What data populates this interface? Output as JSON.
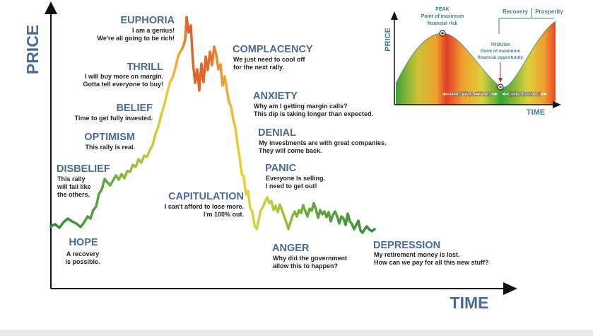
{
  "chart": {
    "y_axis_label": "PRICE",
    "x_axis_label": "TIME"
  },
  "phases": [
    {
      "title": "HOPE",
      "lines": [
        "A recovery",
        "is possible."
      ]
    },
    {
      "title": "DISBELIEF",
      "lines": [
        "This rally",
        "will fail like",
        "the others."
      ]
    },
    {
      "title": "OPTIMISM",
      "lines": [
        "This rally is real."
      ]
    },
    {
      "title": "BELIEF",
      "lines": [
        "Time to get fully invested."
      ]
    },
    {
      "title": "THRILL",
      "lines": [
        "I will buy more on margin.",
        "Gotta tell everyone to buy!"
      ]
    },
    {
      "title": "EUPHORIA",
      "lines": [
        "I am a genius!",
        "We're all going to be rich!"
      ]
    },
    {
      "title": "COMPLACENCY",
      "lines": [
        "We just need to cool off",
        "for the next rally."
      ]
    },
    {
      "title": "ANXIETY",
      "lines": [
        "Why am I getting margin calls?",
        "This dip is taking longer than expected."
      ]
    },
    {
      "title": "DENIAL",
      "lines": [
        "My investments are with great companies.",
        "They will come back."
      ]
    },
    {
      "title": "PANIC",
      "lines": [
        "Everyone is selling.",
        "I need to get out!"
      ]
    },
    {
      "title": "CAPITULATION",
      "lines": [
        "I can't afford to lose more.",
        "I'm 100% out."
      ]
    },
    {
      "title": "ANGER",
      "lines": [
        "Why did the government",
        "allow this to happen?"
      ]
    },
    {
      "title": "DEPRESSION",
      "lines": [
        "My retirement money is lost.",
        "How can we pay for all this new stuff?"
      ]
    }
  ],
  "inset": {
    "y_axis_label": "PRICE",
    "x_axis_label": "TIME",
    "peak_lines": [
      "PEAK",
      "Point of maximum",
      "financial risk"
    ],
    "trough_lines": [
      "TROUGH",
      "Point of maximum",
      "financial opportunity"
    ],
    "recovery_label": "Recovery",
    "prosperity_label": "Prosperity",
    "contraction_label": "CONTRACTION",
    "expansion_label": "EXPANSION"
  },
  "colors": {
    "label_blue": "#4a6b96",
    "text_dark": "#222222",
    "axis": "#111111",
    "green": "#2e9a3e",
    "yellow": "#e8d230",
    "orange": "#f08a24",
    "red": "#e23d28",
    "inset_teal": "#3f7f8c"
  }
}
